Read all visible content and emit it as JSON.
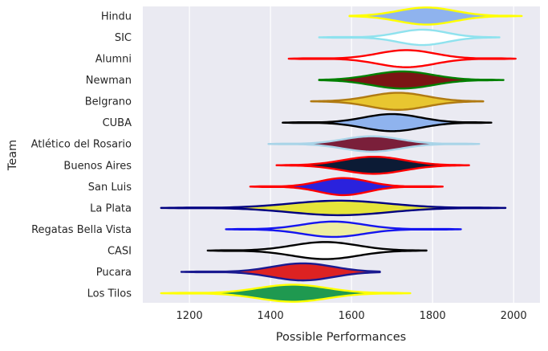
{
  "chart_data": {
    "type": "violin",
    "orientation": "horizontal",
    "xlabel": "Possible Performances",
    "ylabel": "Team",
    "xlim": [
      1085,
      2065
    ],
    "xticks": [
      1200,
      1400,
      1600,
      1800,
      2000
    ],
    "grid": true,
    "legend": "none",
    "background": "#eaeaf2",
    "categories": [
      "Hindu",
      "SIC",
      "Alumni",
      "Newman",
      "Belgrano",
      "CUBA",
      "Atlético del Rosario",
      "Buenos Aires",
      "San Luis",
      "La Plata",
      "Regatas Bella Vista",
      "CASI",
      "Pucara",
      "Los Tilos"
    ],
    "series": [
      {
        "min": 1595,
        "max": 2020,
        "mode": 1785,
        "bw": 70,
        "width": 0.4,
        "fill": "#8fb3ee",
        "stroke": "#ffff00"
      },
      {
        "min": 1520,
        "max": 1965,
        "mode": 1775,
        "bw": 60,
        "width": 0.36,
        "fill": "#ffffff",
        "stroke": "#8fe2ee"
      },
      {
        "min": 1445,
        "max": 2005,
        "mode": 1735,
        "bw": 70,
        "width": 0.4,
        "fill": "#ffffff",
        "stroke": "#ff0000"
      },
      {
        "min": 1520,
        "max": 1975,
        "mode": 1725,
        "bw": 75,
        "width": 0.4,
        "fill": "#7b1414",
        "stroke": "#008000"
      },
      {
        "min": 1500,
        "max": 1925,
        "mode": 1715,
        "bw": 70,
        "width": 0.4,
        "fill": "#e8c630",
        "stroke": "#b07a12"
      },
      {
        "min": 1430,
        "max": 1945,
        "mode": 1700,
        "bw": 70,
        "width": 0.4,
        "fill": "#8fb3ee",
        "stroke": "#000000"
      },
      {
        "min": 1395,
        "max": 1915,
        "mode": 1650,
        "bw": 70,
        "width": 0.36,
        "fill": "#7a1f3a",
        "stroke": "#a9d4e8"
      },
      {
        "min": 1415,
        "max": 1890,
        "mode": 1655,
        "bw": 75,
        "width": 0.4,
        "fill": "#0c1b35",
        "stroke": "#ff0000"
      },
      {
        "min": 1350,
        "max": 1825,
        "mode": 1580,
        "bw": 60,
        "width": 0.4,
        "fill": "#2a22dd",
        "stroke": "#ff0000"
      },
      {
        "min": 1130,
        "max": 1980,
        "mode": 1570,
        "bw": 120,
        "width": 0.34,
        "fill": "#e4e43a",
        "stroke": "#000080"
      },
      {
        "min": 1290,
        "max": 1870,
        "mode": 1555,
        "bw": 75,
        "width": 0.36,
        "fill": "#eeeea0",
        "stroke": "#1515f0"
      },
      {
        "min": 1245,
        "max": 1785,
        "mode": 1535,
        "bw": 80,
        "width": 0.4,
        "fill": "#ffffff",
        "stroke": "#000000"
      },
      {
        "min": 1180,
        "max": 1670,
        "mode": 1480,
        "bw": 75,
        "width": 0.4,
        "fill": "#dd2222",
        "stroke": "#1a1a90"
      },
      {
        "min": 1130,
        "max": 1745,
        "mode": 1455,
        "bw": 85,
        "width": 0.4,
        "fill": "#1f9950",
        "stroke": "#ffff00"
      }
    ]
  }
}
